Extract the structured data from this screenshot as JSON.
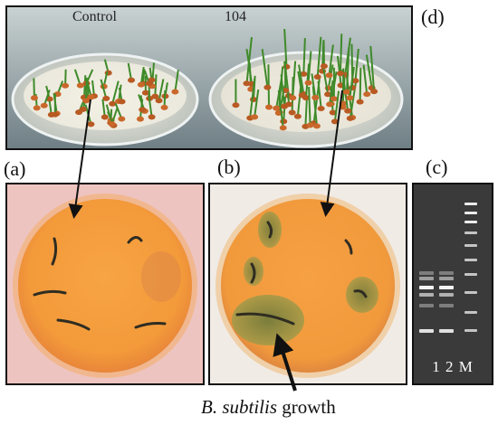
{
  "labels": {
    "d": "(d)",
    "a": "(a)",
    "b": "(b)",
    "c": "(c)"
  },
  "panel_d": {
    "control_text": "Control",
    "treated_text": "104"
  },
  "panel_c": {
    "lane_labels": "1 2 M"
  },
  "caption": {
    "species": "B. subtilis",
    "suffix": " growth"
  }
}
